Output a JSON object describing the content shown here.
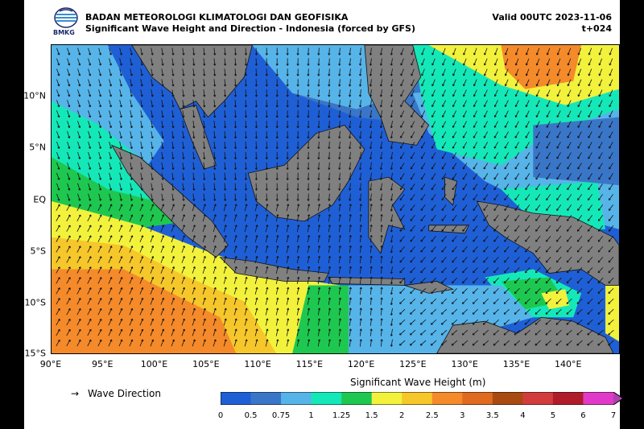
{
  "header": {
    "agency": "BADAN METEOROLOGI KLIMATOLOGI DAN GEOFISIKA",
    "product": "Significant Wave Height and Direction - Indonesia (forced by GFS)",
    "valid": "Valid 00UTC 2023-11-06",
    "lead": "t+024",
    "logo_text": "BMKG"
  },
  "axes": {
    "lat_labels": [
      "10°N",
      "5°N",
      "EQ",
      "5°S",
      "10°S",
      "15°S"
    ],
    "lat_values": [
      10,
      5,
      0,
      -5,
      -10,
      -15
    ],
    "lon_labels": [
      "90°E",
      "95°E",
      "100°E",
      "105°E",
      "110°E",
      "115°E",
      "120°E",
      "125°E",
      "130°E",
      "135°E",
      "140°E"
    ],
    "lon_values": [
      90,
      95,
      100,
      105,
      110,
      115,
      120,
      125,
      130,
      135,
      140
    ],
    "lon_range": [
      90,
      145
    ],
    "lat_range": [
      -15,
      15
    ]
  },
  "legend": {
    "arrow_symbol": "→",
    "direction_label": "Wave Direction",
    "colorbar_title": "Significant Wave Height (m)",
    "ticks": [
      "0",
      "0.5",
      "0.75",
      "1",
      "1.25",
      "1.5",
      "2",
      "2.5",
      "3",
      "3.5",
      "4",
      "5",
      "6",
      "7"
    ],
    "colors": [
      "#1f5fd6",
      "#3a76c8",
      "#56b4e9",
      "#15e8b8",
      "#1ec850",
      "#f2f23c",
      "#f6c72a",
      "#f58a2a",
      "#e06a1e",
      "#a84a12",
      "#d23c3c",
      "#b01c2a",
      "#e23ac8",
      "#b040b0"
    ]
  },
  "map_colors": {
    "land": "#808080",
    "ocean_deep": "#1f5fd6",
    "ocean_mid": "#3a76c8",
    "ocean_light": "#56b4e9",
    "cyan": "#15e8b8",
    "green": "#1ec850",
    "yellow": "#f2f23c",
    "gold": "#f6c72a",
    "orange": "#f58a2a"
  }
}
